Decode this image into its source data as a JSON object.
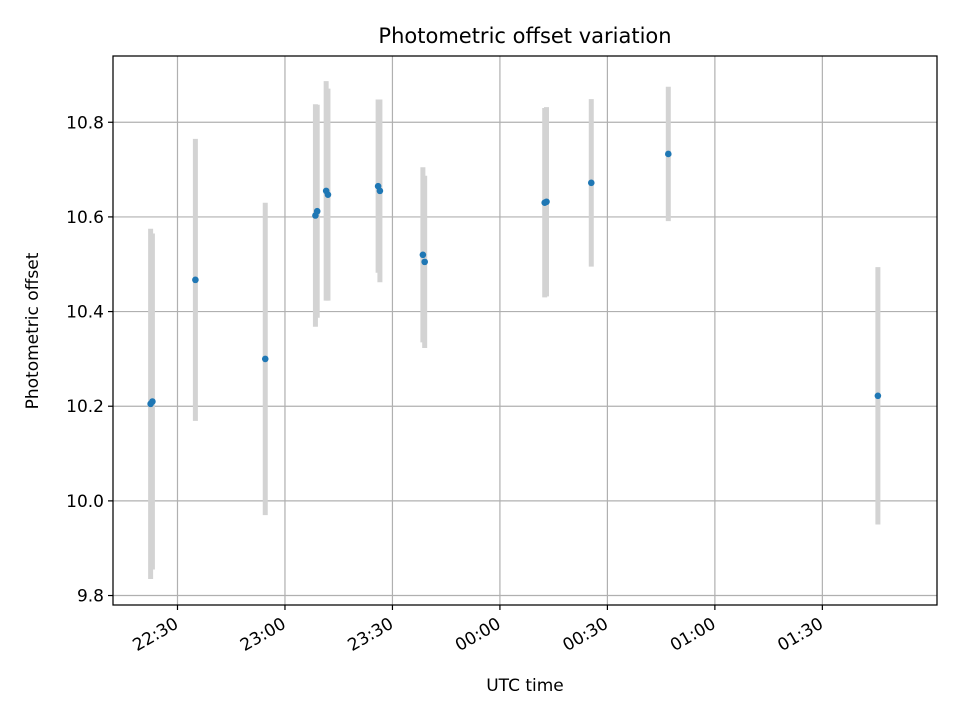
{
  "chart_data": {
    "type": "scatter",
    "title": "Photometric offset variation",
    "xlabel": "UTC time",
    "ylabel": "Photometric offset",
    "x_axis": {
      "kind": "time",
      "range": [
        "22:12",
        "02:02"
      ],
      "ticks": [
        "22:30",
        "23:00",
        "23:30",
        "00:00",
        "00:30",
        "01:00",
        "01:30"
      ],
      "tick_rotation": "30 degrees"
    },
    "y_axis": {
      "range": [
        9.78,
        10.94
      ],
      "ticks": [
        "9.8",
        "10.0",
        "10.2",
        "10.4",
        "10.6",
        "10.8"
      ]
    },
    "grid": true,
    "colors": {
      "marker": "#1f77b4",
      "errorbar": "#d3d3d3",
      "grid": "#b0b0b0"
    },
    "points": [
      {
        "time": "22:22.5",
        "y": 10.205,
        "yerr": 0.37
      },
      {
        "time": "22:23.0",
        "y": 10.21,
        "yerr": 0.355
      },
      {
        "time": "22:35.0",
        "y": 10.467,
        "yerr": 0.298
      },
      {
        "time": "22:54.5",
        "y": 10.3,
        "yerr": 0.33
      },
      {
        "time": "23:08.5",
        "y": 10.603,
        "yerr": 0.235
      },
      {
        "time": "23:09.0",
        "y": 10.612,
        "yerr": 0.225
      },
      {
        "time": "23:11.5",
        "y": 10.655,
        "yerr": 0.232
      },
      {
        "time": "23:12.0",
        "y": 10.647,
        "yerr": 0.224
      },
      {
        "time": "23:26.0",
        "y": 10.665,
        "yerr": 0.183
      },
      {
        "time": "23:26.5",
        "y": 10.655,
        "yerr": 0.193
      },
      {
        "time": "23:38.5",
        "y": 10.52,
        "yerr": 0.185
      },
      {
        "time": "23:39.0",
        "y": 10.505,
        "yerr": 0.182
      },
      {
        "time": "00:12.5",
        "y": 10.63,
        "yerr": 0.2
      },
      {
        "time": "00:13.0",
        "y": 10.632,
        "yerr": 0.2
      },
      {
        "time": "00:25.5",
        "y": 10.672,
        "yerr": 0.177
      },
      {
        "time": "00:47.0",
        "y": 10.733,
        "yerr": 0.142
      },
      {
        "time": "01:45.5",
        "y": 10.222,
        "yerr": 0.272
      }
    ]
  }
}
